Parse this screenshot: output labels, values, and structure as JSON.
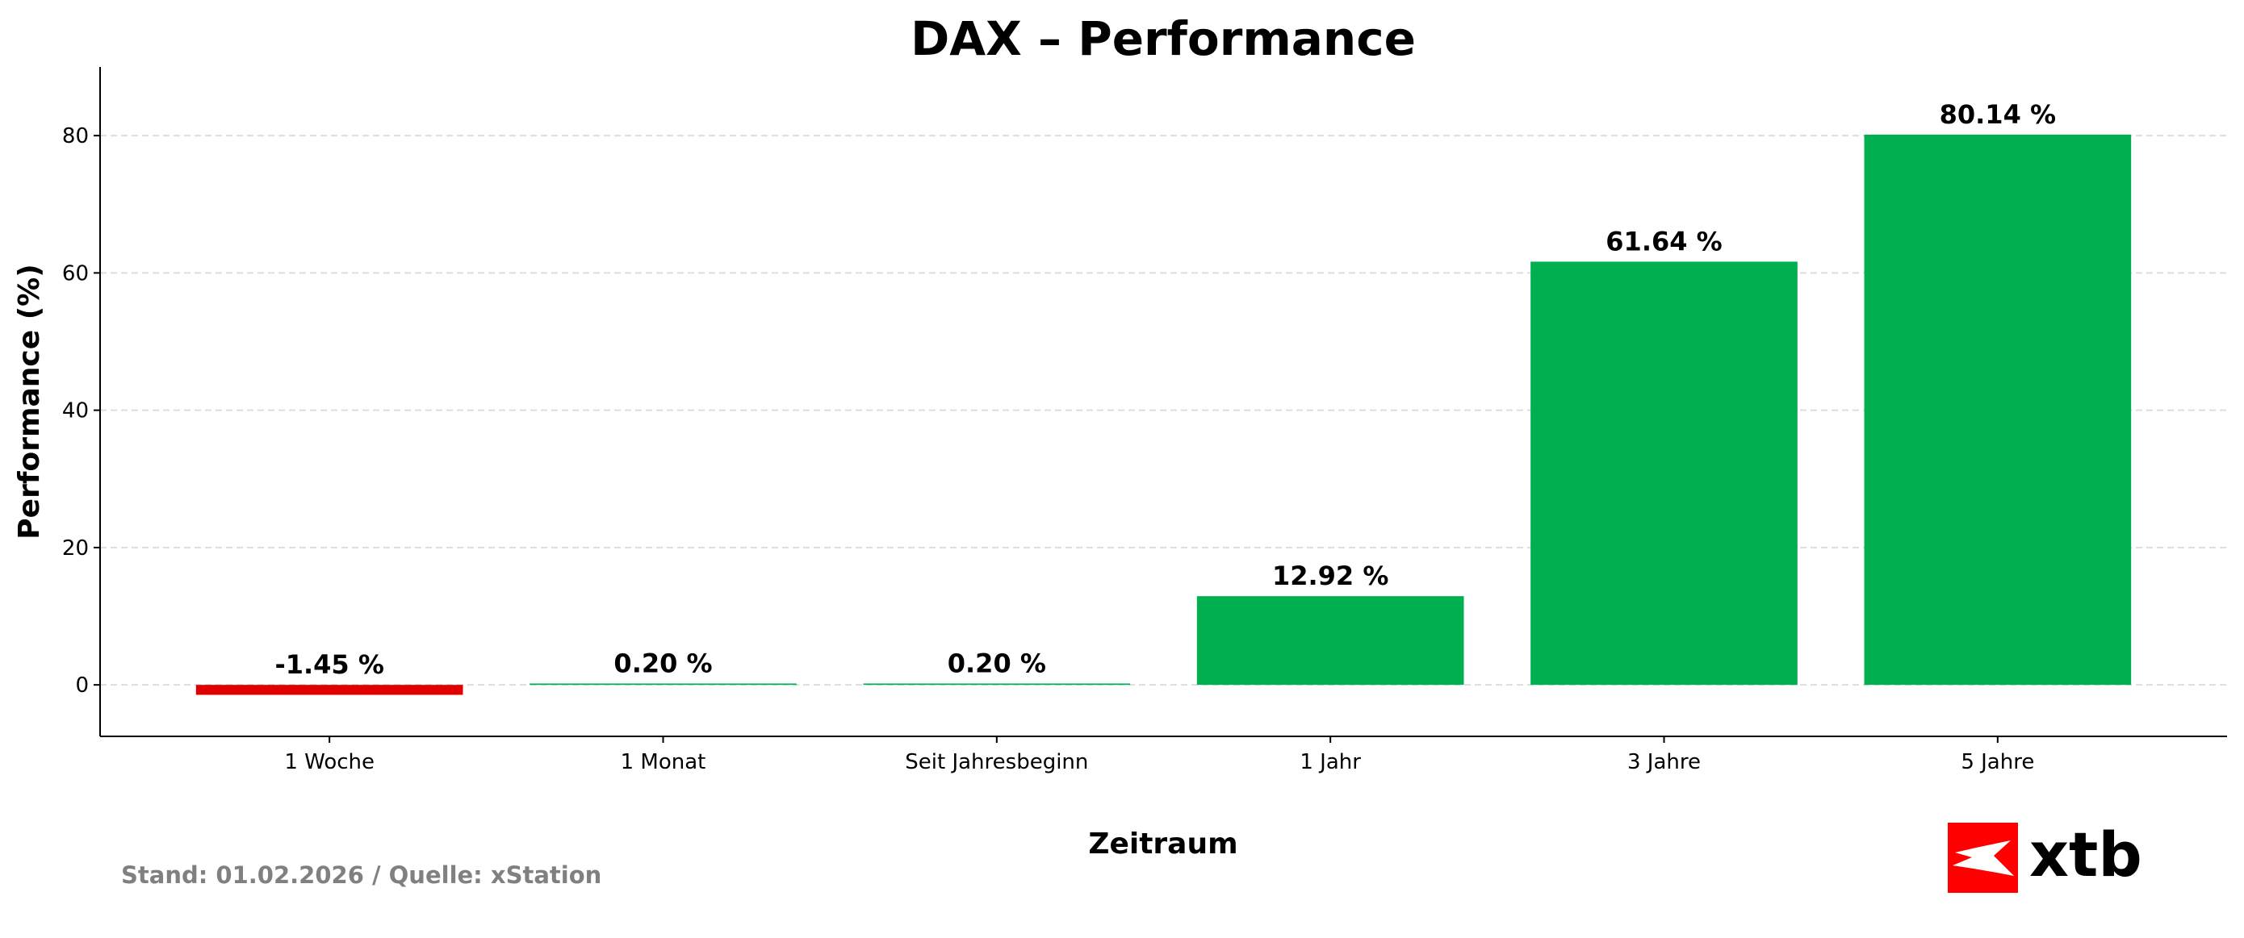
{
  "chart_data": {
    "type": "bar",
    "title": "DAX – Performance",
    "xlabel": "Zeitraum",
    "ylabel": "Performance (%)",
    "categories": [
      "1 Woche",
      "1 Monat",
      "Seit Jahresbeginn",
      "1 Jahr",
      "3 Jahre",
      "5 Jahre"
    ],
    "values": [
      -1.45,
      0.2,
      0.2,
      12.92,
      61.64,
      80.14
    ],
    "data_labels": [
      "-1.45 %",
      "0.20 %",
      "0.20 %",
      "12.92 %",
      "61.64 %",
      "80.14 %"
    ],
    "ylim": [
      -7.5,
      90
    ],
    "yticks": [
      0,
      20,
      40,
      60,
      80
    ],
    "grid": "y dashed",
    "colors": {
      "positive": "#00B050",
      "negative": "#E00000"
    }
  },
  "footer": {
    "source": "Stand: 01.02.2026 / Quelle: xStation"
  },
  "logo": {
    "text": "xtb",
    "color": "#FF0000"
  }
}
